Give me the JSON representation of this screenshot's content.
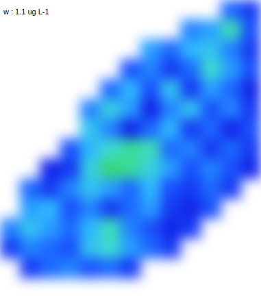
{
  "chart_data": {
    "type": "heatmap",
    "title": "w : 1.1 ug L-1",
    "tick_labels": false,
    "color_range": [
      1.1,
      2.5
    ],
    "cells": [
      [
        null,
        null,
        null,
        null,
        null,
        null,
        null,
        null,
        null,
        null,
        null,
        1.5,
        1.3
      ],
      [
        null,
        null,
        null,
        null,
        null,
        null,
        null,
        null,
        null,
        1.6,
        1.7,
        2.2,
        1.4
      ],
      [
        null,
        null,
        null,
        null,
        null,
        null,
        null,
        1.7,
        1.5,
        1.8,
        1.9,
        1.6,
        1.3
      ],
      [
        null,
        null,
        null,
        null,
        null,
        null,
        1.4,
        1.6,
        1.3,
        1.5,
        2.1,
        1.7,
        1.4
      ],
      [
        null,
        null,
        null,
        null,
        null,
        1.5,
        1.8,
        1.4,
        1.9,
        1.3,
        1.7,
        1.5,
        1.2
      ],
      [
        null,
        null,
        null,
        null,
        1.6,
        2.0,
        1.7,
        1.2,
        1.6,
        1.9,
        1.4,
        1.6,
        1.3
      ],
      [
        null,
        null,
        null,
        null,
        1.9,
        1.6,
        1.2,
        1.5,
        1.8,
        1.3,
        1.5,
        1.2,
        1.4
      ],
      [
        null,
        null,
        null,
        1.4,
        1.8,
        2.1,
        2.3,
        2.2,
        1.5,
        1.6,
        1.3,
        1.5,
        1.3
      ],
      [
        null,
        null,
        1.2,
        1.3,
        2.0,
        2.4,
        2.3,
        2.0,
        1.7,
        1.4,
        1.6,
        1.4,
        1.2
      ],
      [
        null,
        1.5,
        1.3,
        1.6,
        1.9,
        1.7,
        1.5,
        1.8,
        1.4,
        1.3,
        1.5,
        1.3,
        null
      ],
      [
        null,
        1.7,
        1.8,
        1.4,
        1.6,
        1.3,
        1.5,
        1.7,
        1.3,
        1.2,
        1.4,
        null,
        null
      ],
      [
        1.6,
        1.9,
        1.7,
        1.5,
        1.8,
        2.2,
        1.6,
        1.4,
        1.2,
        1.3,
        null,
        null,
        null
      ],
      [
        1.3,
        1.6,
        1.5,
        1.4,
        1.9,
        2.1,
        1.7,
        1.5,
        1.3,
        null,
        null,
        null,
        null
      ],
      [
        null,
        1.3,
        1.5,
        1.6,
        1.4,
        1.5,
        1.3,
        null,
        null,
        null,
        null,
        null,
        null
      ],
      [
        null,
        null,
        null,
        null,
        null,
        null,
        null,
        null,
        null,
        null,
        null,
        null,
        null
      ]
    ]
  }
}
